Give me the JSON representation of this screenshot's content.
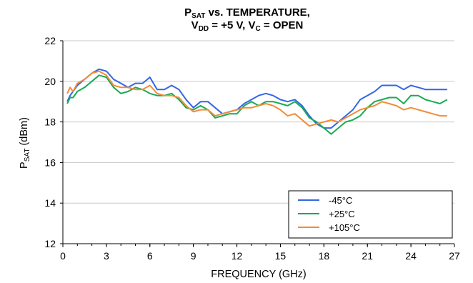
{
  "chart_data": {
    "type": "line",
    "title": {
      "line1": {
        "main": "P",
        "sub": "SAT",
        "rest": " vs. TEMPERATURE,"
      },
      "line2": {
        "p1": "V",
        "s1": "DD",
        "p2": " = +5 V, V",
        "s2": "C",
        "p3": " = OPEN"
      }
    },
    "xlabel": "FREQUENCY (GHz)",
    "ylabel": {
      "main": "P",
      "sub": "SAT",
      "rest": " (dBm)"
    },
    "xlim": [
      0,
      27
    ],
    "ylim": [
      12,
      22
    ],
    "xticks": [
      0,
      3,
      6,
      9,
      12,
      15,
      18,
      21,
      24,
      27
    ],
    "yticks": [
      12,
      14,
      16,
      18,
      20,
      22
    ],
    "grid": {
      "horizontal": true,
      "vertical": false
    },
    "legend_position": "bottom-right",
    "series": [
      {
        "name": "-45°C",
        "color": "#3366e6",
        "x": [
          0.3,
          0.5,
          0.7,
          1.0,
          1.5,
          2.0,
          2.5,
          3.0,
          3.5,
          4.0,
          4.5,
          5.0,
          5.5,
          6.0,
          6.5,
          7.0,
          7.5,
          8.0,
          8.5,
          9.0,
          9.5,
          10.0,
          10.5,
          11.0,
          11.5,
          12.0,
          12.5,
          13.0,
          13.5,
          14.0,
          14.5,
          15.0,
          15.5,
          16.0,
          16.5,
          17.0,
          17.5,
          18.0,
          18.5,
          19.0,
          19.5,
          20.0,
          20.5,
          21.0,
          21.5,
          22.0,
          22.5,
          23.0,
          23.5,
          24.0,
          24.5,
          25.0,
          25.5,
          26.0,
          26.5
        ],
        "y": [
          19.0,
          19.3,
          19.5,
          19.8,
          20.1,
          20.4,
          20.6,
          20.5,
          20.1,
          19.9,
          19.7,
          19.9,
          19.9,
          20.2,
          19.6,
          19.6,
          19.8,
          19.6,
          19.1,
          18.7,
          19.0,
          19.0,
          18.7,
          18.4,
          18.5,
          18.6,
          18.9,
          19.1,
          19.3,
          19.4,
          19.3,
          19.1,
          19.0,
          19.1,
          18.8,
          18.3,
          17.9,
          17.7,
          17.7,
          18.0,
          18.3,
          18.6,
          19.1,
          19.3,
          19.5,
          19.8,
          19.8,
          19.8,
          19.6,
          19.8,
          19.7,
          19.6,
          19.6,
          19.6,
          19.6
        ]
      },
      {
        "name": "+25°C",
        "color": "#1aaa55",
        "x": [
          0.3,
          0.5,
          0.7,
          1.0,
          1.5,
          2.0,
          2.5,
          3.0,
          3.5,
          4.0,
          4.5,
          5.0,
          5.5,
          6.0,
          6.5,
          7.0,
          7.5,
          8.0,
          8.5,
          9.0,
          9.5,
          10.0,
          10.5,
          11.0,
          11.5,
          12.0,
          12.5,
          13.0,
          13.5,
          14.0,
          14.5,
          15.0,
          15.5,
          16.0,
          16.5,
          17.0,
          17.5,
          18.0,
          18.5,
          19.0,
          19.5,
          20.0,
          20.5,
          21.0,
          21.5,
          22.0,
          22.5,
          23.0,
          23.5,
          24.0,
          24.5,
          25.0,
          25.5,
          26.0,
          26.5
        ],
        "y": [
          18.9,
          19.2,
          19.2,
          19.5,
          19.7,
          20.0,
          20.3,
          20.2,
          19.7,
          19.4,
          19.5,
          19.7,
          19.6,
          19.4,
          19.3,
          19.3,
          19.4,
          19.1,
          18.7,
          18.6,
          18.8,
          18.6,
          18.2,
          18.3,
          18.4,
          18.4,
          18.8,
          19.0,
          18.8,
          19.0,
          19.0,
          18.9,
          18.8,
          19.0,
          18.7,
          18.2,
          18.0,
          17.7,
          17.4,
          17.7,
          18.0,
          18.1,
          18.3,
          18.7,
          19.0,
          19.1,
          19.2,
          19.2,
          18.9,
          19.3,
          19.3,
          19.1,
          19.0,
          18.9,
          19.1
        ]
      },
      {
        "name": "+105°C",
        "color": "#f28c38",
        "x": [
          0.3,
          0.5,
          0.7,
          1.0,
          1.5,
          2.0,
          2.5,
          3.0,
          3.5,
          4.0,
          4.5,
          5.0,
          5.5,
          6.0,
          6.5,
          7.0,
          7.5,
          8.0,
          8.5,
          9.0,
          9.5,
          10.0,
          10.5,
          11.0,
          11.5,
          12.0,
          12.5,
          13.0,
          13.5,
          14.0,
          14.5,
          15.0,
          15.5,
          16.0,
          16.5,
          17.0,
          17.5,
          18.0,
          18.5,
          19.0,
          19.5,
          20.0,
          20.5,
          21.0,
          21.5,
          22.0,
          22.5,
          23.0,
          23.5,
          24.0,
          24.5,
          25.0,
          25.5,
          26.0,
          26.5
        ],
        "y": [
          19.4,
          19.7,
          19.5,
          19.9,
          20.1,
          20.4,
          20.5,
          20.3,
          19.8,
          19.7,
          19.7,
          19.6,
          19.6,
          19.8,
          19.4,
          19.3,
          19.3,
          19.2,
          18.8,
          18.5,
          18.6,
          18.6,
          18.3,
          18.4,
          18.5,
          18.6,
          18.7,
          18.7,
          18.8,
          18.9,
          18.8,
          18.6,
          18.3,
          18.4,
          18.1,
          17.8,
          17.9,
          18.0,
          18.1,
          18.0,
          18.2,
          18.4,
          18.6,
          18.7,
          18.8,
          19.0,
          18.9,
          18.8,
          18.6,
          18.7,
          18.6,
          18.5,
          18.4,
          18.3,
          18.3
        ]
      }
    ]
  }
}
